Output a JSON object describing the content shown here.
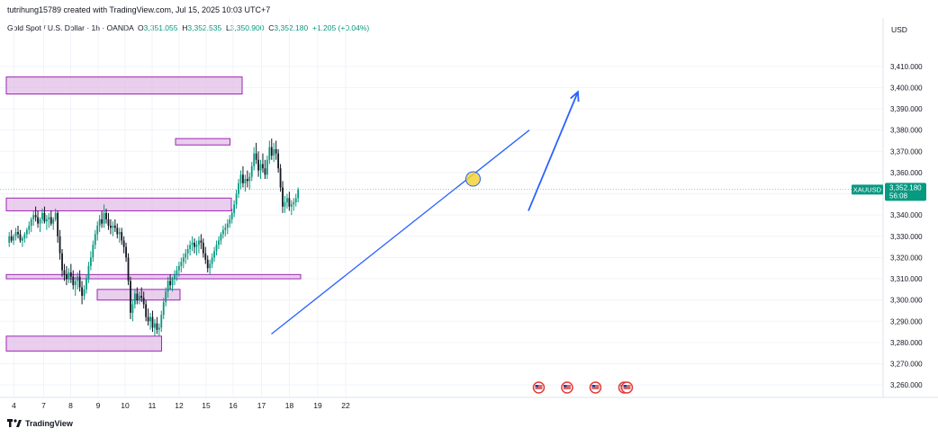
{
  "header": {
    "credit": "tutrihung15789 created with TradingView.com, Jul 15, 2025 10:03 UTC+7",
    "symbol_desc": "Gold Spot / U.S. Dollar · 1h · OANDA",
    "open_label": "O",
    "open_value": "3,351.055",
    "high_label": "H",
    "high_value": "3,352.535",
    "low_label": "L",
    "low_value": "3,350.900",
    "close_label": "C",
    "close_value": "3,352.180",
    "change": "+1.205 (+0.04%)"
  },
  "currency": "USD",
  "footer": {
    "brand": "TradingView"
  },
  "colors": {
    "up": "#089981",
    "down": "#131722",
    "zone_fill": "#e1bee7",
    "zone_border": "#9c27b0",
    "trend": "#2962ff",
    "marker": "#f2d33a",
    "badge": "#089981"
  },
  "chart_data": {
    "type": "candlestick",
    "symbol": "XAUUSD",
    "interval": "1h",
    "last_price": "3,352.180",
    "countdown": "56:08",
    "yticks": [
      3260,
      3270,
      3280,
      3290,
      3300,
      3310,
      3320,
      3330,
      3340,
      3350,
      3360,
      3370,
      3380,
      3390,
      3400,
      3410
    ],
    "ytick_labels": [
      "3,260.000",
      "3,270.000",
      "3,280.000",
      "3,290.000",
      "3,300.000",
      "3,310.000",
      "3,320.000",
      "3,330.000",
      "3,340.000",
      "3,350.000",
      "3,360.000",
      "3,370.000",
      "3,380.000",
      "3,390.000",
      "3,400.000",
      "3,410.000"
    ],
    "ylim": [
      3255,
      3426
    ],
    "xticks": [
      {
        "label": "4",
        "t": 1.3
      },
      {
        "label": "7",
        "t": 7.9
      },
      {
        "label": "8",
        "t": 13.9
      },
      {
        "label": "9",
        "t": 20.0
      },
      {
        "label": "10",
        "t": 26.0
      },
      {
        "label": "11",
        "t": 32.0
      },
      {
        "label": "12",
        "t": 38.0
      },
      {
        "label": "15",
        "t": 44.0
      },
      {
        "label": "16",
        "t": 50.0
      },
      {
        "label": "17",
        "t": 56.3
      },
      {
        "label": "18",
        "t": 62.5
      },
      {
        "label": "19",
        "t": 68.8
      },
      {
        "label": "22",
        "t": 75.0
      }
    ],
    "zones": [
      {
        "t0": 0,
        "t1": 52.0,
        "y0": 3397,
        "y1": 3405
      },
      {
        "t0": 37.6,
        "t1": 49.3,
        "y0": 3373,
        "y1": 3376
      },
      {
        "t0": 0,
        "t1": 49.6,
        "y0": 3342,
        "y1": 3348
      },
      {
        "t0": 0,
        "t1": 65.0,
        "y0": 3310,
        "y1": 3312
      },
      {
        "t0": 20.2,
        "t1": 38.2,
        "y0": 3300,
        "y1": 3305
      },
      {
        "t0": 0,
        "t1": 34.1,
        "y0": 3276,
        "y1": 3283
      }
    ],
    "trendline": {
      "t0": 22.9,
      "y0": 3284,
      "t1": 46.6,
      "y1": 3380
    },
    "projection_arrow": {
      "t0": 46.0,
      "y0": 3342,
      "t1": 50.0,
      "y1": 3398
    },
    "highlight_point": {
      "t": 40.9,
      "y": 3357
    },
    "event_markers": [
      46.9,
      53.2,
      59.5,
      65.9,
      66.5
    ],
    "candles": [
      [
        3327,
        3332,
        3325,
        3330
      ],
      [
        3330,
        3333,
        3327,
        3328
      ],
      [
        3328,
        3331,
        3326,
        3330
      ],
      [
        3330,
        3334,
        3328,
        3332
      ],
      [
        3332,
        3335,
        3329,
        3331
      ],
      [
        3331,
        3333,
        3327,
        3328
      ],
      [
        3328,
        3330,
        3325,
        3329
      ],
      [
        3329,
        3332,
        3327,
        3331
      ],
      [
        3331,
        3334,
        3329,
        3333
      ],
      [
        3333,
        3337,
        3331,
        3335
      ],
      [
        3335,
        3339,
        3332,
        3338
      ],
      [
        3338,
        3342,
        3335,
        3340
      ],
      [
        3340,
        3344,
        3337,
        3339
      ],
      [
        3339,
        3342,
        3334,
        3336
      ],
      [
        3336,
        3339,
        3332,
        3338
      ],
      [
        3338,
        3343,
        3336,
        3341
      ],
      [
        3341,
        3344,
        3336,
        3337
      ],
      [
        3337,
        3340,
        3333,
        3338
      ],
      [
        3338,
        3341,
        3334,
        3339
      ],
      [
        3339,
        3342,
        3335,
        3336
      ],
      [
        3336,
        3339,
        3333,
        3338
      ],
      [
        3338,
        3343,
        3337,
        3341
      ],
      [
        3341,
        3342,
        3327,
        3330
      ],
      [
        3330,
        3333,
        3319,
        3322
      ],
      [
        3322,
        3324,
        3311,
        3314
      ],
      [
        3314,
        3317,
        3309,
        3312
      ],
      [
        3312,
        3316,
        3307,
        3310
      ],
      [
        3310,
        3315,
        3308,
        3313
      ],
      [
        3313,
        3317,
        3308,
        3311
      ],
      [
        3311,
        3314,
        3305,
        3307
      ],
      [
        3307,
        3311,
        3302,
        3309
      ],
      [
        3309,
        3313,
        3305,
        3311
      ],
      [
        3311,
        3314,
        3304,
        3306
      ],
      [
        3306,
        3309,
        3298,
        3302
      ],
      [
        3302,
        3307,
        3300,
        3305
      ],
      [
        3305,
        3312,
        3303,
        3310
      ],
      [
        3310,
        3318,
        3308,
        3316
      ],
      [
        3316,
        3323,
        3314,
        3320
      ],
      [
        3320,
        3328,
        3318,
        3326
      ],
      [
        3326,
        3333,
        3324,
        3331
      ],
      [
        3331,
        3337,
        3328,
        3335
      ],
      [
        3335,
        3340,
        3332,
        3338
      ],
      [
        3338,
        3342,
        3334,
        3336
      ],
      [
        3336,
        3345,
        3334,
        3341
      ],
      [
        3341,
        3343,
        3336,
        3338
      ],
      [
        3338,
        3341,
        3333,
        3335
      ],
      [
        3335,
        3338,
        3331,
        3334
      ],
      [
        3334,
        3337,
        3330,
        3335
      ],
      [
        3335,
        3338,
        3332,
        3334
      ],
      [
        3334,
        3336,
        3329,
        3331
      ],
      [
        3331,
        3334,
        3327,
        3332
      ],
      [
        3332,
        3334,
        3326,
        3328
      ],
      [
        3328,
        3330,
        3322,
        3325
      ],
      [
        3325,
        3327,
        3318,
        3320
      ],
      [
        3320,
        3322,
        3307,
        3309
      ],
      [
        3309,
        3311,
        3291,
        3294
      ],
      [
        3294,
        3300,
        3290,
        3298
      ],
      [
        3298,
        3305,
        3296,
        3303
      ],
      [
        3303,
        3306,
        3298,
        3300
      ],
      [
        3300,
        3304,
        3298,
        3302
      ],
      [
        3302,
        3306,
        3299,
        3301
      ],
      [
        3301,
        3304,
        3296,
        3298
      ],
      [
        3298,
        3300,
        3290,
        3292
      ],
      [
        3292,
        3296,
        3288,
        3290
      ],
      [
        3290,
        3294,
        3286,
        3292
      ],
      [
        3292,
        3295,
        3285,
        3287
      ],
      [
        3287,
        3291,
        3283,
        3289
      ],
      [
        3289,
        3292,
        3284,
        3286
      ],
      [
        3286,
        3289,
        3283,
        3287
      ],
      [
        3287,
        3295,
        3285,
        3293
      ],
      [
        3293,
        3301,
        3291,
        3299
      ],
      [
        3299,
        3306,
        3297,
        3304
      ],
      [
        3304,
        3311,
        3301,
        3309
      ],
      [
        3309,
        3312,
        3305,
        3307
      ],
      [
        3307,
        3311,
        3304,
        3310
      ],
      [
        3310,
        3314,
        3307,
        3312
      ],
      [
        3312,
        3316,
        3309,
        3314
      ],
      [
        3314,
        3318,
        3311,
        3316
      ],
      [
        3316,
        3320,
        3313,
        3318
      ],
      [
        3318,
        3322,
        3315,
        3320
      ],
      [
        3320,
        3324,
        3317,
        3322
      ],
      [
        3322,
        3326,
        3319,
        3324
      ],
      [
        3324,
        3328,
        3321,
        3326
      ],
      [
        3326,
        3330,
        3323,
        3327
      ],
      [
        3327,
        3329,
        3322,
        3325
      ],
      [
        3325,
        3328,
        3321,
        3326
      ],
      [
        3326,
        3330,
        3322,
        3328
      ],
      [
        3328,
        3331,
        3324,
        3327
      ],
      [
        3327,
        3329,
        3320,
        3322
      ],
      [
        3322,
        3325,
        3317,
        3319
      ],
      [
        3319,
        3321,
        3313,
        3315
      ],
      [
        3315,
        3319,
        3312,
        3317
      ],
      [
        3317,
        3322,
        3315,
        3320
      ],
      [
        3320,
        3325,
        3318,
        3323
      ],
      [
        3323,
        3328,
        3321,
        3326
      ],
      [
        3326,
        3330,
        3324,
        3328
      ],
      [
        3328,
        3332,
        3326,
        3331
      ],
      [
        3331,
        3335,
        3329,
        3333
      ],
      [
        3333,
        3336,
        3330,
        3334
      ],
      [
        3334,
        3338,
        3331,
        3336
      ],
      [
        3336,
        3340,
        3334,
        3338
      ],
      [
        3338,
        3343,
        3336,
        3341
      ],
      [
        3341,
        3347,
        3339,
        3345
      ],
      [
        3345,
        3352,
        3343,
        3350
      ],
      [
        3350,
        3357,
        3348,
        3355
      ],
      [
        3355,
        3361,
        3352,
        3359
      ],
      [
        3359,
        3363,
        3353,
        3355
      ],
      [
        3355,
        3359,
        3351,
        3357
      ],
      [
        3357,
        3361,
        3353,
        3356
      ],
      [
        3356,
        3360,
        3352,
        3358
      ],
      [
        3358,
        3365,
        3356,
        3363
      ],
      [
        3363,
        3372,
        3361,
        3369
      ],
      [
        3369,
        3374,
        3364,
        3366
      ],
      [
        3366,
        3370,
        3358,
        3361
      ],
      [
        3361,
        3366,
        3357,
        3364
      ],
      [
        3364,
        3369,
        3360,
        3362
      ],
      [
        3362,
        3366,
        3357,
        3359
      ],
      [
        3359,
        3368,
        3357,
        3366
      ],
      [
        3366,
        3375,
        3364,
        3372
      ],
      [
        3372,
        3376,
        3366,
        3368
      ],
      [
        3368,
        3374,
        3365,
        3371
      ],
      [
        3371,
        3375,
        3366,
        3369
      ],
      [
        3369,
        3371,
        3360,
        3362
      ],
      [
        3362,
        3364,
        3351,
        3353
      ],
      [
        3353,
        3356,
        3341,
        3344
      ],
      [
        3344,
        3349,
        3341,
        3346
      ],
      [
        3346,
        3350,
        3343,
        3348
      ],
      [
        3348,
        3351,
        3342,
        3344
      ],
      [
        3344,
        3347,
        3340,
        3345
      ],
      [
        3345,
        3348,
        3342,
        3346
      ],
      [
        3346,
        3350,
        3344,
        3348
      ],
      [
        3348,
        3353,
        3346,
        3352
      ]
    ]
  }
}
